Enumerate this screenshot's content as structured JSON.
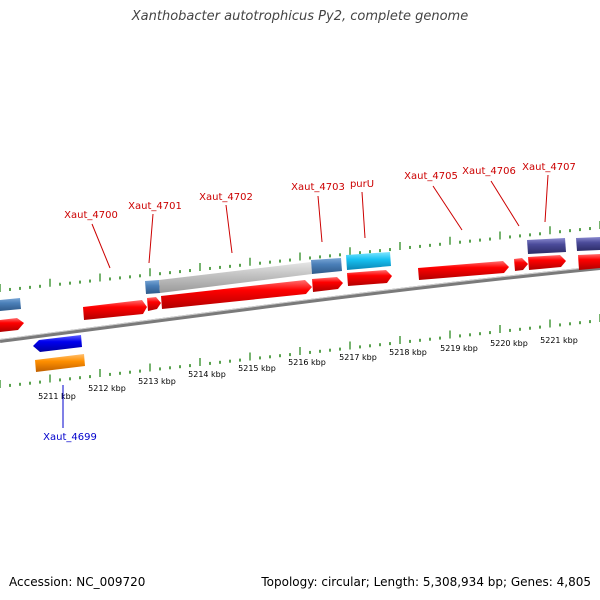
{
  "title": "Xanthobacter autotrophicus Py2, complete genome",
  "footer": {
    "accession_label": "Accession:",
    "accession": "NC_009720",
    "topology_text": "Topology: circular; Length: 5,308,934 bp; Genes: 4,805"
  },
  "scale_labels": [
    "5211 kbp",
    "5212 kbp",
    "5213 kbp",
    "5214 kbp",
    "5215 kbp",
    "5216 kbp",
    "5217 kbp",
    "5218 kbp",
    "5219 kbp",
    "5220 kbp",
    "5221 kbp"
  ],
  "gene_labels": {
    "xaut_4699": "Xaut_4699",
    "xaut_4700": "Xaut_4700",
    "xaut_4701": "Xaut_4701",
    "xaut_4702": "Xaut_4702",
    "xaut_4703": "Xaut_4703",
    "purU": "purU",
    "xaut_4705": "Xaut_4705",
    "xaut_4706": "Xaut_4706",
    "xaut_4707": "Xaut_4707"
  },
  "colors": {
    "gene_red": "#ff0000",
    "label_red": "#cc0000",
    "label_blue": "#0000cc",
    "tick_green": "#2e8b22",
    "backbone": "#808080"
  }
}
